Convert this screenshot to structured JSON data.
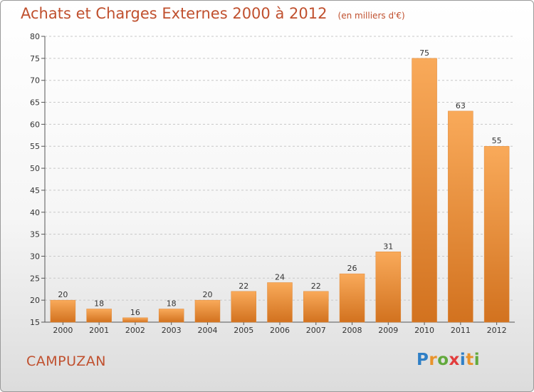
{
  "header": {
    "title": "Achats et Charges Externes 2000 à 2012",
    "unit": "(en milliers d'€)"
  },
  "footer": {
    "city": "CAMPUZAN",
    "logo_letters": [
      {
        "ch": "P",
        "color": "#2f7fc6"
      },
      {
        "ch": "r",
        "color": "#e9932b"
      },
      {
        "ch": "o",
        "color": "#62a93c"
      },
      {
        "ch": "x",
        "color": "#e23c3c"
      },
      {
        "ch": "i",
        "color": "#2f7fc6"
      },
      {
        "ch": "t",
        "color": "#e9932b"
      },
      {
        "ch": "i",
        "color": "#62a93c"
      }
    ]
  },
  "colors": {
    "bar_top": "#f9aa5a",
    "bar_bottom": "#d2721f",
    "grid": "#c8c8c8",
    "title": "#c0502e"
  },
  "chart_data": {
    "type": "bar",
    "title": "Achats et Charges Externes 2000 à 2012",
    "subtitle": "(en milliers d'€)",
    "xlabel": "",
    "ylabel": "",
    "categories": [
      "2000",
      "2001",
      "2002",
      "2003",
      "2004",
      "2005",
      "2006",
      "2007",
      "2008",
      "2009",
      "2010",
      "2011",
      "2012"
    ],
    "values": [
      20,
      18,
      16,
      18,
      20,
      22,
      24,
      22,
      26,
      31,
      75,
      63,
      55
    ],
    "ylim": [
      15,
      80
    ],
    "yticks": [
      15,
      20,
      25,
      30,
      35,
      40,
      45,
      50,
      55,
      60,
      65,
      70,
      75,
      80
    ],
    "grid": "horizontal dashed",
    "legend": "none"
  }
}
